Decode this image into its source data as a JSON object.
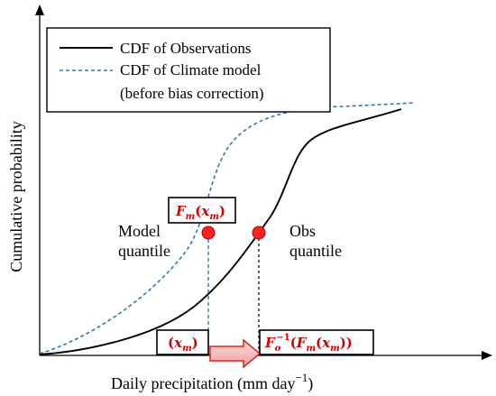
{
  "axes": {
    "ylabel": "Cumulative probability",
    "xlabel_main": "Daily precipitation (mm day",
    "xlabel_exp": "−1",
    "xlabel_close": ")"
  },
  "legend": {
    "obs_label": "CDF of Observations",
    "model_label_line1": "CDF of Climate model",
    "model_label_line2": "(before bias correction)"
  },
  "annotations": {
    "model_quantile_line1": "Model",
    "model_quantile_line2": "quantile",
    "obs_quantile_line1": "Obs",
    "obs_quantile_line2": "quantile"
  },
  "formula_boxes": {
    "fm": {
      "letter": "F",
      "sub": "m",
      "open": "(",
      "var": "x",
      "var_sub": "m",
      "close": ")"
    },
    "xm": {
      "open": "(",
      "var": "x",
      "var_sub": "m",
      "close": ")"
    },
    "inverse": {
      "letter": "F",
      "sub": "o",
      "sup": "−1",
      "open1": "(",
      "letter2": "F",
      "sub2": "m",
      "open2": "(",
      "var": "x",
      "var_sub": "m",
      "close": "))"
    }
  },
  "colors": {
    "obs_curve": "#000000",
    "model_curve": "#2e75b6",
    "quantile_marker": "#ff2020",
    "formula_text": "#d40000",
    "arrow_fill": "#f4b6b6",
    "arrow_stroke": "#e02020"
  },
  "icons": {
    "marker": "red-circle-marker",
    "arrow": "right-arrow-icon"
  }
}
